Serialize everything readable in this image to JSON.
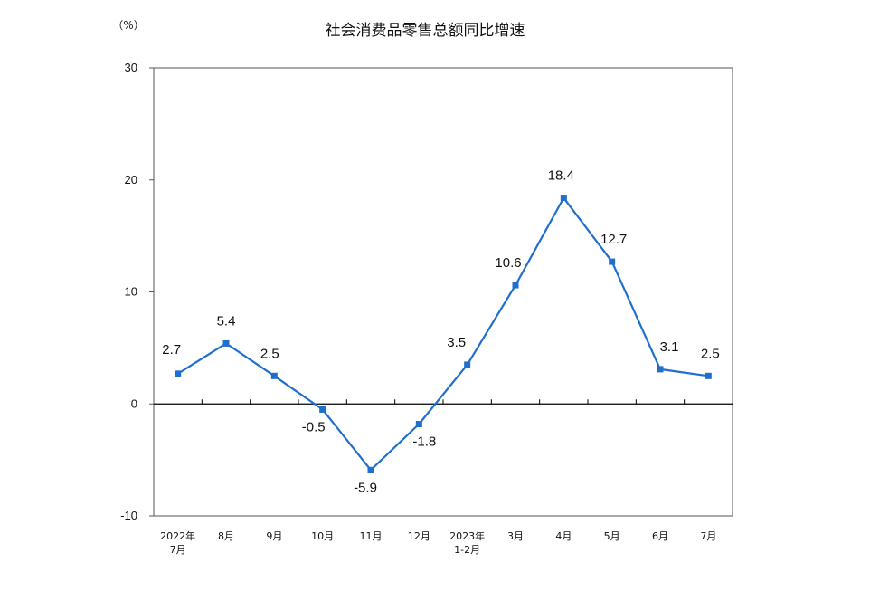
{
  "chart_data": {
    "type": "line",
    "title": "社会消费品零售总额同比增速",
    "unit_label": "（%）",
    "categories": [
      [
        "2022年",
        "7月"
      ],
      [
        "8月"
      ],
      [
        "9月"
      ],
      [
        "10月"
      ],
      [
        "11月"
      ],
      [
        "12月"
      ],
      [
        "2023年",
        "1-2月"
      ],
      [
        "3月"
      ],
      [
        "4月"
      ],
      [
        "5月"
      ],
      [
        "6月"
      ],
      [
        "7月"
      ]
    ],
    "series": [
      {
        "values": [
          2.7,
          5.4,
          2.5,
          -0.5,
          -5.9,
          -1.8,
          3.5,
          10.6,
          18.4,
          12.7,
          3.1,
          2.5
        ],
        "labels": [
          "2.7",
          "5.4",
          "2.5",
          "-0.5",
          "-5.9",
          "-1.8",
          "3.5",
          "10.6",
          "18.4",
          "12.7",
          "3.1",
          "2.5"
        ],
        "color": "#1f6fcf"
      }
    ],
    "ylim": [
      -10,
      30
    ],
    "yticks": [
      "30",
      "20",
      "10",
      "0",
      "-10"
    ],
    "ytick_values": [
      30,
      20,
      10,
      0,
      -10
    ],
    "grid": false,
    "legend": "none"
  }
}
